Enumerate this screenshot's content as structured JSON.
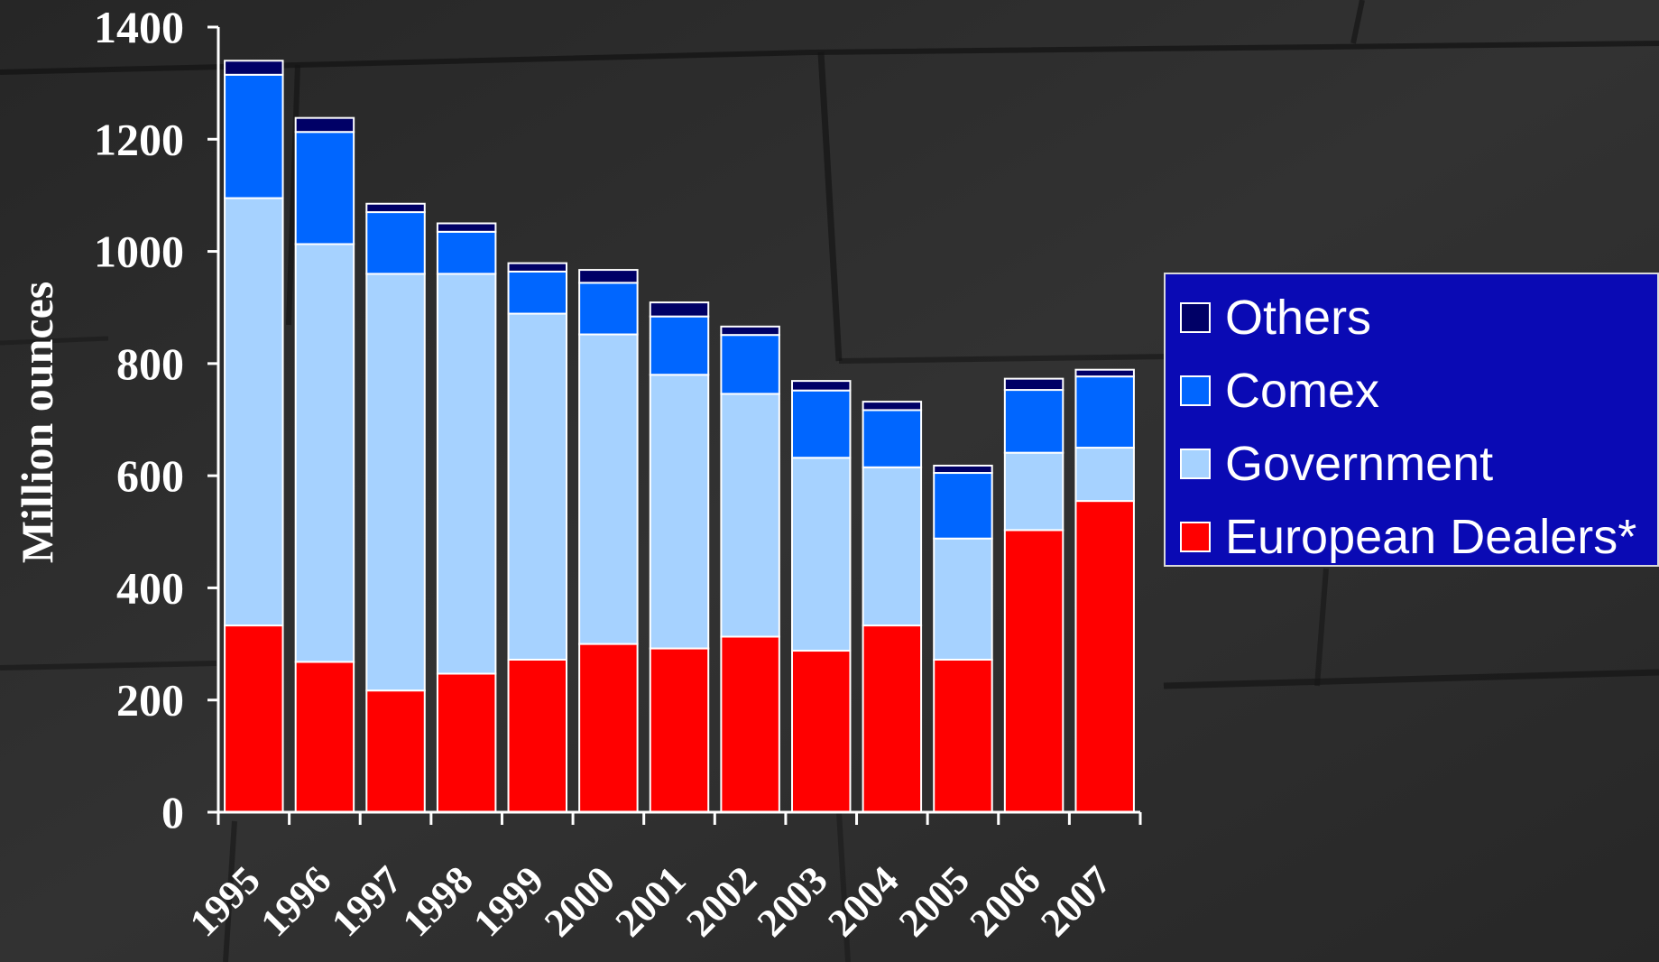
{
  "chart_data": {
    "type": "bar",
    "stacked": true,
    "ylabel": "Million ounces",
    "xlabel": "",
    "ylim": [
      0,
      1400
    ],
    "yticks": [
      0,
      200,
      400,
      600,
      800,
      1000,
      1200,
      1400
    ],
    "categories": [
      "1995",
      "1996",
      "1997",
      "1998",
      "1999",
      "2000",
      "2001",
      "2002",
      "2003",
      "2004",
      "2005",
      "2006",
      "2007"
    ],
    "series": [
      {
        "name": "European Dealers*",
        "color": "#ff0000",
        "values": [
          333,
          268,
          217,
          247,
          272,
          300,
          292,
          313,
          288,
          333,
          272,
          503,
          555
        ]
      },
      {
        "name": "Government",
        "color": "#a6d2ff",
        "values": [
          762,
          745,
          743,
          713,
          617,
          552,
          488,
          433,
          344,
          282,
          216,
          138,
          95
        ]
      },
      {
        "name": "Comex",
        "color": "#0066ff",
        "values": [
          220,
          200,
          110,
          75,
          75,
          92,
          104,
          105,
          120,
          102,
          117,
          112,
          127
        ]
      },
      {
        "name": "Others",
        "color": "#000066",
        "values": [
          25,
          25,
          15,
          15,
          15,
          23,
          25,
          15,
          17,
          15,
          13,
          20,
          12
        ]
      }
    ],
    "legend": {
      "position": "right",
      "order": [
        "Others",
        "Comex",
        "Government",
        "European Dealers*"
      ]
    },
    "grid": false
  }
}
